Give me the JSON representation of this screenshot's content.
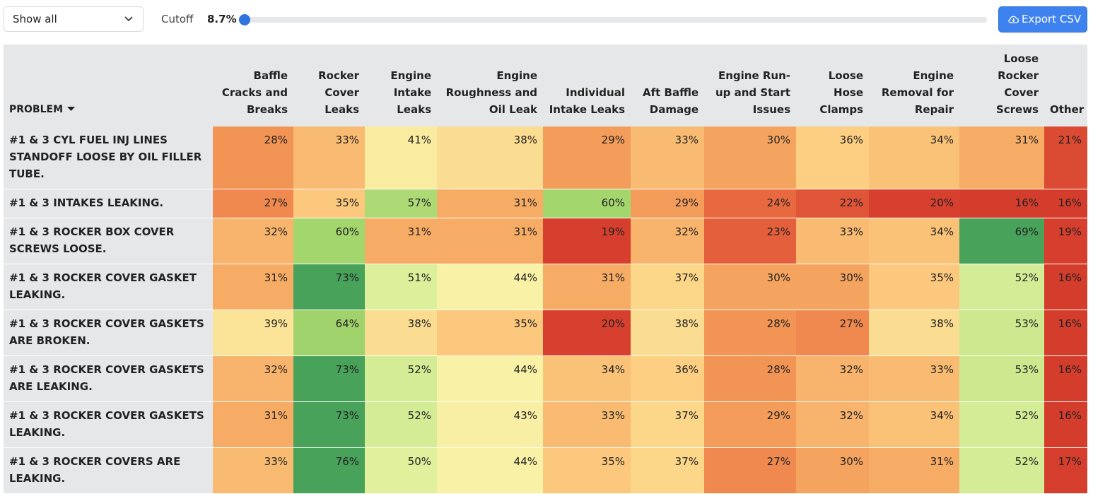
{
  "toolbar": {
    "filter": "Show all",
    "cutoff_label": "Cutoff",
    "cutoff_value": "8.7%",
    "export": "Export CSV"
  },
  "table": {
    "columns": [
      "PROBLEM",
      "Baffle Cracks and Breaks",
      "Rocker Cover Leaks",
      "Engine Intake Leaks",
      "Engine Roughness and Oil Leak",
      "Individual Intake Leaks",
      "Aft Baffle Damage",
      "Engine Run-up and Start Issues",
      "Loose Hose Clamps",
      "Engine Removal for Repair",
      "Loose Rocker Cover Screws",
      "Other"
    ],
    "rows": [
      [
        "#1 & 3 CYL FUEL INJ LINES STANDOFF LOOSE BY OIL FILLER TUBE.",
        "28%",
        "33%",
        "41%",
        "38%",
        "29%",
        "33%",
        "30%",
        "36%",
        "34%",
        "31%",
        "21%"
      ],
      [
        "#1 & 3 INTAKES LEAKING.",
        "27%",
        "35%",
        "57%",
        "31%",
        "60%",
        "29%",
        "24%",
        "22%",
        "20%",
        "16%",
        "16%"
      ],
      [
        "#1 & 3 ROCKER BOX COVER SCREWS LOOSE.",
        "32%",
        "60%",
        "31%",
        "31%",
        "19%",
        "32%",
        "23%",
        "33%",
        "34%",
        "69%",
        "19%"
      ],
      [
        "#1 & 3 ROCKER COVER GASKET LEAKING.",
        "31%",
        "73%",
        "51%",
        "44%",
        "31%",
        "37%",
        "30%",
        "30%",
        "35%",
        "52%",
        "16%"
      ],
      [
        "#1 & 3 ROCKER COVER GASKETS ARE BROKEN.",
        "39%",
        "64%",
        "38%",
        "35%",
        "20%",
        "38%",
        "28%",
        "27%",
        "38%",
        "53%",
        "16%"
      ],
      [
        "#1 & 3 ROCKER COVER GASKETS ARE LEAKING.",
        "32%",
        "73%",
        "52%",
        "44%",
        "34%",
        "36%",
        "28%",
        "32%",
        "33%",
        "53%",
        "16%"
      ],
      [
        "#1 & 3 ROCKER COVER GASKETS LEAKING.",
        "31%",
        "73%",
        "52%",
        "43%",
        "33%",
        "37%",
        "29%",
        "32%",
        "34%",
        "52%",
        "16%"
      ],
      [
        "#1 & 3 ROCKER COVERS ARE LEAKING.",
        "33%",
        "76%",
        "50%",
        "44%",
        "35%",
        "37%",
        "27%",
        "30%",
        "31%",
        "52%",
        "17%"
      ]
    ]
  }
}
